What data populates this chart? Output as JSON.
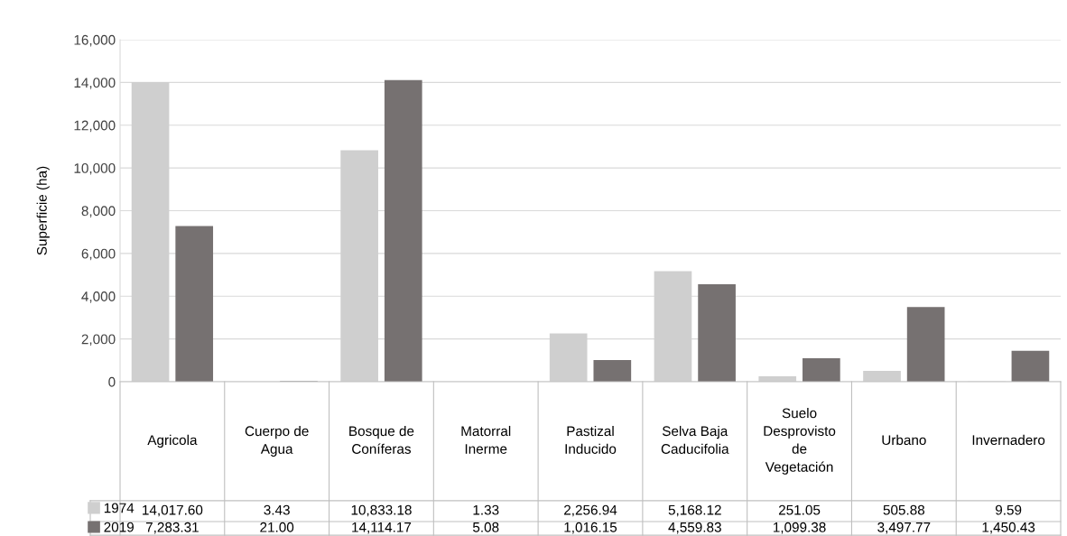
{
  "chart_data": {
    "type": "bar",
    "ylabel": "Superficie (ha)",
    "categories": [
      "Agricola",
      "Cuerpo de\nAgua",
      "Bosque de\nConíferas",
      "Matorral\nInerme",
      "Pastizal\nInducido",
      "Selva Baja\nCaducifolia",
      "Suelo\nDesprovisto\nde\nVegetación",
      "Urbano",
      "Invernadero"
    ],
    "series": [
      {
        "name": "1974",
        "color": "#cfcfcf",
        "values": [
          14017.6,
          3.43,
          10833.18,
          1.33,
          2256.94,
          5168.12,
          251.05,
          505.88,
          9.59
        ],
        "value_labels": [
          "14,017.60",
          "3.43",
          "10,833.18",
          "1.33",
          "2,256.94",
          "5,168.12",
          "251.05",
          "505.88",
          "9.59"
        ]
      },
      {
        "name": "2019",
        "color": "#767171",
        "values": [
          7283.31,
          21.0,
          14114.17,
          5.08,
          1016.15,
          4559.83,
          1099.38,
          3497.77,
          1450.43
        ],
        "value_labels": [
          "7,283.31",
          "21.00",
          "14,114.17",
          "5.08",
          "1,016.15",
          "4,559.83",
          "1,099.38",
          "3,497.77",
          "1,450.43"
        ]
      }
    ],
    "ylim": [
      0,
      16000
    ],
    "yticks": [
      0,
      {
        "value": 2000,
        "label": "2,000"
      },
      {
        "value": 4000,
        "label": "4,000"
      },
      {
        "value": 6000,
        "label": "6,000"
      },
      {
        "value": 8000,
        "label": "8,000"
      },
      {
        "value": 10000,
        "label": "10,000"
      },
      {
        "value": 12000,
        "label": "12,000"
      },
      {
        "value": 14000,
        "label": "14,000"
      },
      {
        "value": 16000,
        "label": "16,000"
      }
    ],
    "grid": "y",
    "legend": "bottom"
  }
}
